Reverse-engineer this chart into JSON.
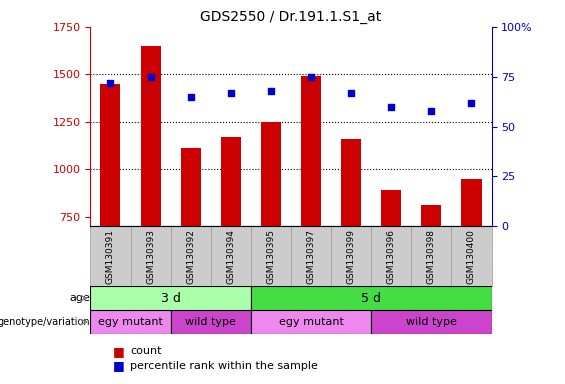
{
  "title": "GDS2550 / Dr.191.1.S1_at",
  "samples": [
    "GSM130391",
    "GSM130393",
    "GSM130392",
    "GSM130394",
    "GSM130395",
    "GSM130397",
    "GSM130399",
    "GSM130396",
    "GSM130398",
    "GSM130400"
  ],
  "counts": [
    1450,
    1650,
    1110,
    1170,
    1250,
    1490,
    1160,
    890,
    810,
    950
  ],
  "percentiles": [
    72,
    75,
    65,
    67,
    68,
    75,
    67,
    60,
    58,
    62
  ],
  "ylim_left": [
    700,
    1750
  ],
  "ylim_right": [
    0,
    100
  ],
  "yticks_left": [
    750,
    1000,
    1250,
    1500,
    1750
  ],
  "yticks_right": [
    0,
    25,
    50,
    75,
    100
  ],
  "bar_color": "#cc0000",
  "dot_color": "#0000cc",
  "grid_dotted_ticks": [
    1000,
    1250,
    1500
  ],
  "age_groups": [
    {
      "label": "3 d",
      "start": 0,
      "end": 4,
      "color": "#aaffaa"
    },
    {
      "label": "5 d",
      "start": 4,
      "end": 10,
      "color": "#44dd44"
    }
  ],
  "genotype_groups": [
    {
      "label": "egy mutant",
      "start": 0,
      "end": 2,
      "color": "#ee88ee"
    },
    {
      "label": "wild type",
      "start": 2,
      "end": 4,
      "color": "#cc44cc"
    },
    {
      "label": "egy mutant",
      "start": 4,
      "end": 7,
      "color": "#ee88ee"
    },
    {
      "label": "wild type",
      "start": 7,
      "end": 10,
      "color": "#cc44cc"
    }
  ],
  "age_label": "age",
  "genotype_label": "genotype/variation",
  "legend_count": "count",
  "legend_percentile": "percentile rank within the sample",
  "bar_base": 700,
  "xtick_bg": "#cccccc",
  "xtick_border": "#999999"
}
